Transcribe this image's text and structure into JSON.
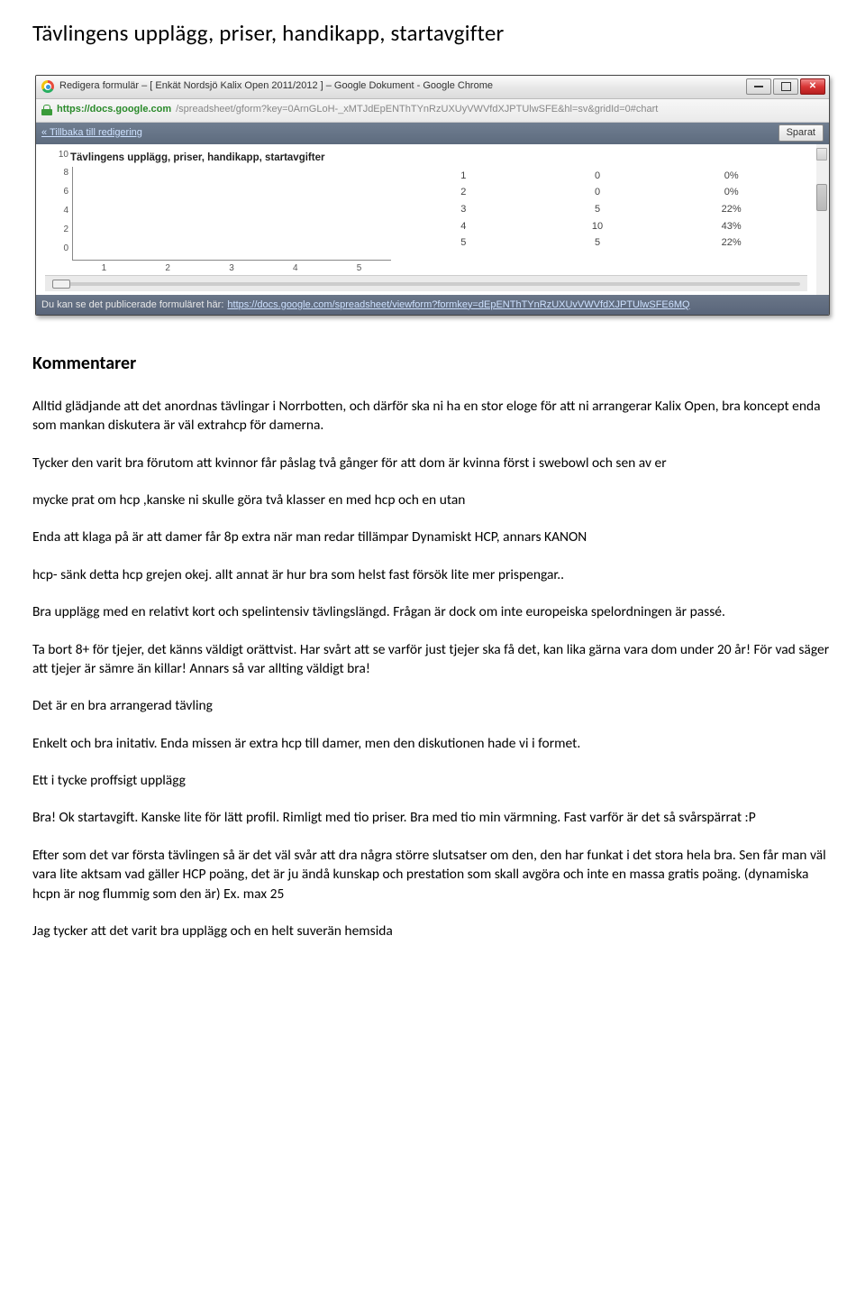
{
  "page": {
    "title": "Tävlingens upplägg, priser, handikapp, startavgifter"
  },
  "browser": {
    "titlebar": "Redigera formulär – [ Enkät Nordsjö Kalix Open 2011/2012 ] – Google Dokument - Google Chrome",
    "url_host": "https://docs.google.com",
    "url_path": "/spreadsheet/gform?key=0ArnGLoH-_xMTJdEpENThTYnRzUXUyVWVfdXJPTUlwSFE&hl=sv&gridId=0#chart",
    "back_link": "« Tillbaka till redigering",
    "saved_label": "Sparat",
    "footer_prefix": "Du kan se det publicerade formuläret här:",
    "footer_link": "https://docs.google.com/spreadsheet/viewform?formkey=dEpENThTYnRzUXUvVWVfdXJPTUlwSFE6MQ"
  },
  "chart": {
    "type": "bar",
    "title": "Tävlingens upplägg, priser, handikapp, startavgifter",
    "categories": [
      "1",
      "2",
      "3",
      "4",
      "5"
    ],
    "values": [
      0,
      0,
      5,
      10,
      5
    ],
    "percentages": [
      "0%",
      "0%",
      "22%",
      "43%",
      "22%"
    ],
    "bar_colors": [
      "#ef8f8f",
      "#ef8f8f",
      "#ef8f8f",
      "#d62728",
      "#ef8f8f"
    ],
    "ylim": [
      0,
      10
    ],
    "yticks": [
      0,
      2,
      4,
      6,
      8,
      10
    ],
    "axis_color": "#888888",
    "tick_font_size": 10,
    "title_font_size": 11.5,
    "background_color": "#ffffff"
  },
  "comments": {
    "heading": "Kommentarer",
    "items": [
      "Alltid glädjande att det anordnas tävlingar i Norrbotten, och därför ska ni ha en stor eloge för att ni arrangerar Kalix Open, bra koncept enda som mankan diskutera är väl extrahcp för damerna.",
      "Tycker den varit bra förutom att kvinnor får påslag två gånger för att dom är kvinna först i swebowl och sen av er",
      "mycke prat om hcp ,kanske ni skulle göra två klasser en med hcp och en utan",
      "Enda att klaga på är att damer får 8p extra när man redar tillämpar Dynamiskt HCP, annars KANON",
      "hcp- sänk detta hcp grejen okej. allt annat är hur bra som helst fast försök lite mer prispengar..",
      "Bra upplägg med en relativt kort och spelintensiv tävlingslängd. Frågan är dock om inte europeiska spelordningen är passé.",
      "Ta bort 8+ för tjejer, det känns väldigt orättvist. Har svårt att se varför just tjejer ska få det, kan lika gärna vara dom under 20 år! För vad säger att tjejer är sämre än killar! Annars så var allting väldigt bra!",
      "Det är en bra arrangerad tävling",
      "Enkelt och bra initativ. Enda missen är extra hcp till damer, men den diskutionen hade vi i formet.",
      "Ett i tycke proffsigt upplägg",
      "Bra! Ok startavgift. Kanske lite för lätt profil. Rimligt med tio priser. Bra med tio min värmning. Fast varför är det så svårspärrat :P",
      "Efter som det var första tävlingen så är det väl svår att dra några större slutsatser om den, den har funkat i det stora hela bra. Sen får man väl vara lite aktsam vad gäller HCP poäng, det är ju ändå kunskap och prestation som skall avgöra och inte en massa gratis poäng. (dynamiska hcpn är nog flummig som den är) Ex. max 25",
      "Jag tycker att det varit bra upplägg och en helt suverän hemsida"
    ]
  }
}
